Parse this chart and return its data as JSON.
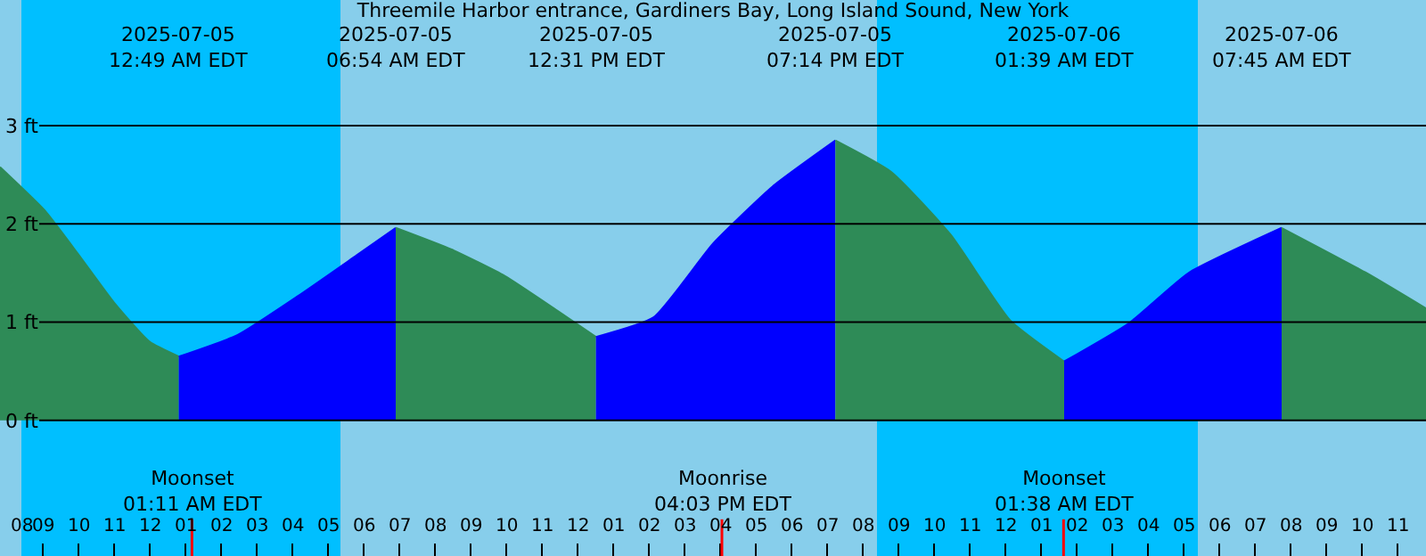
{
  "chart_data": {
    "type": "area",
    "title": "Threemile Harbor entrance, Gardiners Bay, Long Island Sound, New York",
    "series": [
      {
        "color": "#2e8b57",
        "x": [
          "2025-07-04T19:48",
          "2025-07-04T21:03",
          "2025-07-04T22:00",
          "2025-07-04T23:00",
          "2025-07-05T00:00",
          "2025-07-05T00:49"
        ],
        "values": [
          2.58,
          2.14,
          1.69,
          1.2,
          0.8,
          0.65
        ]
      },
      {
        "color": "#0000ff",
        "x": [
          "2025-07-05T00:49",
          "2025-07-05T02:28",
          "2025-07-05T04:08",
          "2025-07-05T05:48",
          "2025-07-05T06:54"
        ],
        "values": [
          0.65,
          0.87,
          1.26,
          1.68,
          1.96
        ]
      },
      {
        "color": "#2e8b57",
        "x": [
          "2025-07-05T06:54",
          "2025-07-05T08:28",
          "2025-07-05T09:58",
          "2025-07-05T11:28",
          "2025-07-05T12:31"
        ],
        "values": [
          1.96,
          1.74,
          1.47,
          1.11,
          0.85
        ]
      },
      {
        "color": "#0000ff",
        "x": [
          "2025-07-05T12:31",
          "2025-07-05T14:08",
          "2025-07-05T15:48",
          "2025-07-05T17:28",
          "2025-07-05T19:14"
        ],
        "values": [
          0.85,
          1.05,
          1.8,
          2.38,
          2.85
        ]
      },
      {
        "color": "#2e8b57",
        "x": [
          "2025-07-05T19:14",
          "2025-07-05T20:48",
          "2025-07-05T22:28",
          "2025-07-06T00:08",
          "2025-07-06T01:39"
        ],
        "values": [
          2.85,
          2.53,
          1.89,
          1.02,
          0.6
        ]
      },
      {
        "color": "#0000ff",
        "x": [
          "2025-07-06T01:39",
          "2025-07-06T03:28",
          "2025-07-06T05:08",
          "2025-07-06T07:45"
        ],
        "values": [
          0.6,
          0.99,
          1.5,
          1.96
        ]
      },
      {
        "color": "#2e8b57",
        "x": [
          "2025-07-06T07:45",
          "2025-07-06T10:08",
          "2025-07-06T11:48"
        ],
        "values": [
          1.96,
          1.5,
          1.14
        ]
      }
    ],
    "xlim": [
      "2025-07-04T19:48",
      "2025-07-06T11:48"
    ],
    "xticks": [
      {
        "value": "2025-07-04T20:00",
        "label": "08"
      },
      {
        "value": "2025-07-04T21:00",
        "label": "09"
      },
      {
        "value": "2025-07-04T22:00",
        "label": "10"
      },
      {
        "value": "2025-07-04T23:00",
        "label": "11"
      },
      {
        "value": "2025-07-05T00:00",
        "label": "12"
      },
      {
        "value": "2025-07-05T01:00",
        "label": "01"
      },
      {
        "value": "2025-07-05T02:00",
        "label": "02"
      },
      {
        "value": "2025-07-05T03:00",
        "label": "03"
      },
      {
        "value": "2025-07-05T04:00",
        "label": "04"
      },
      {
        "value": "2025-07-05T05:00",
        "label": "05"
      },
      {
        "value": "2025-07-05T06:00",
        "label": "06"
      },
      {
        "value": "2025-07-05T07:00",
        "label": "07"
      },
      {
        "value": "2025-07-05T08:00",
        "label": "08"
      },
      {
        "value": "2025-07-05T09:00",
        "label": "09"
      },
      {
        "value": "2025-07-05T10:00",
        "label": "10"
      },
      {
        "value": "2025-07-05T11:00",
        "label": "11"
      },
      {
        "value": "2025-07-05T12:00",
        "label": "12"
      },
      {
        "value": "2025-07-05T13:00",
        "label": "01"
      },
      {
        "value": "2025-07-05T14:00",
        "label": "02"
      },
      {
        "value": "2025-07-05T15:00",
        "label": "03"
      },
      {
        "value": "2025-07-05T16:00",
        "label": "04"
      },
      {
        "value": "2025-07-05T17:00",
        "label": "05"
      },
      {
        "value": "2025-07-05T18:00",
        "label": "06"
      },
      {
        "value": "2025-07-05T19:00",
        "label": "07"
      },
      {
        "value": "2025-07-05T20:00",
        "label": "08"
      },
      {
        "value": "2025-07-05T21:00",
        "label": "09"
      },
      {
        "value": "2025-07-05T22:00",
        "label": "10"
      },
      {
        "value": "2025-07-05T23:00",
        "label": "11"
      },
      {
        "value": "2025-07-06T00:00",
        "label": "12"
      },
      {
        "value": "2025-07-06T01:00",
        "label": "01"
      },
      {
        "value": "2025-07-06T02:00",
        "label": "02"
      },
      {
        "value": "2025-07-06T03:00",
        "label": "03"
      },
      {
        "value": "2025-07-06T04:00",
        "label": "04"
      },
      {
        "value": "2025-07-06T05:00",
        "label": "05"
      },
      {
        "value": "2025-07-06T06:00",
        "label": "06"
      },
      {
        "value": "2025-07-06T07:00",
        "label": "07"
      },
      {
        "value": "2025-07-06T08:00",
        "label": "08"
      },
      {
        "value": "2025-07-06T09:00",
        "label": "09"
      },
      {
        "value": "2025-07-06T10:00",
        "label": "10"
      },
      {
        "value": "2025-07-06T11:00",
        "label": "11"
      }
    ],
    "ylim": [
      -1.38,
      4.28
    ],
    "yticks": [
      {
        "value": 0,
        "label": "0 ft"
      },
      {
        "value": 1,
        "label": "1 ft"
      },
      {
        "value": 2,
        "label": "2 ft"
      },
      {
        "value": 3,
        "label": "3 ft"
      }
    ],
    "grid": "y",
    "bands": [
      {
        "axis": "x",
        "from": "2025-07-04T20:24",
        "to": "2025-07-05T05:21",
        "color": "#00bfff"
      },
      {
        "axis": "x",
        "from": "2025-07-05T20:24",
        "to": "2025-07-06T05:24",
        "color": "#00bfff"
      }
    ],
    "ref_lines": [
      {
        "axis": "x",
        "value": "2025-07-05T01:11",
        "label": "Moonset\n01:11 AM EDT",
        "color": "#ff0000"
      },
      {
        "axis": "x",
        "value": "2025-07-05T16:03",
        "label": "Moonrise\n04:03 PM EDT",
        "color": "#ff0000"
      },
      {
        "axis": "x",
        "value": "2025-07-06T01:38",
        "label": "Moonset\n01:38 AM EDT",
        "color": "#ff0000"
      }
    ],
    "annotations": [
      "2025-07-05\n12:49 AM EDT",
      "2025-07-05\n06:54 AM EDT",
      "2025-07-05\n12:31 PM EDT",
      "2025-07-05\n07:14 PM EDT",
      "2025-07-06\n01:39 AM EDT",
      "2025-07-06\n07:45 AM EDT"
    ]
  }
}
